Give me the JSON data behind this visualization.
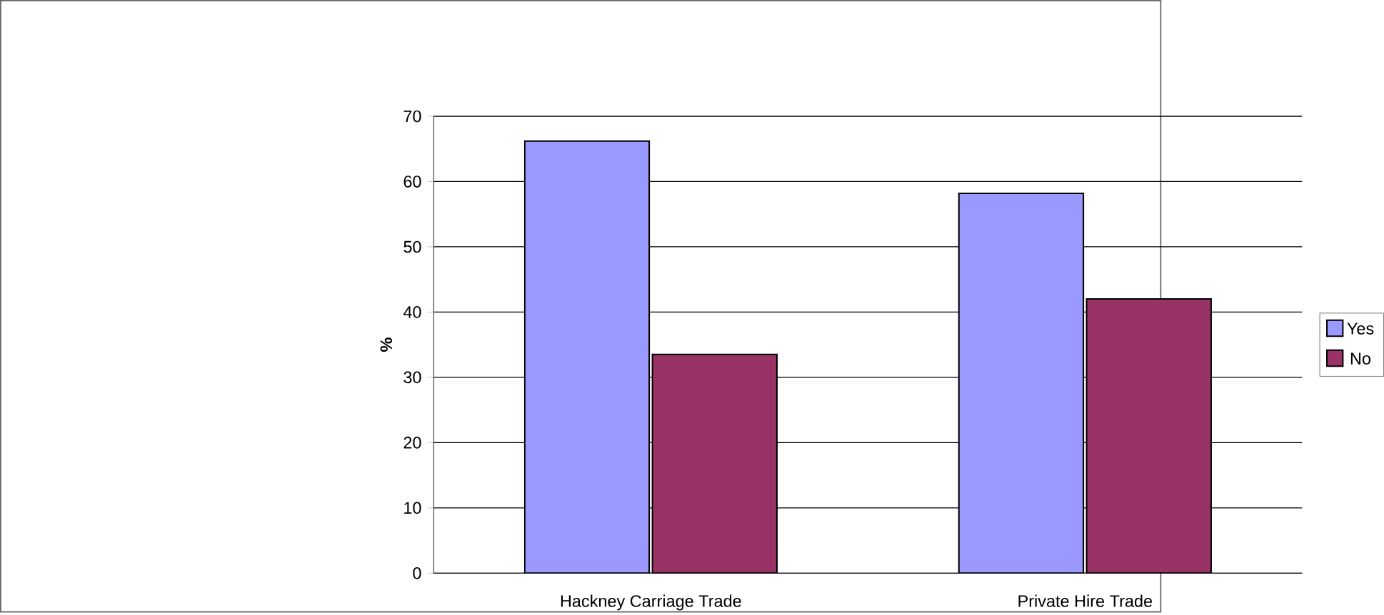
{
  "chart_data": {
    "type": "bar",
    "ylabel": "%",
    "categories": [
      "Hackney Carriage Trade",
      "Private Hire Trade"
    ],
    "series": [
      {
        "name": "Yes",
        "color": "#9999ff",
        "values": [
          66.2,
          58.2
        ]
      },
      {
        "name": "No",
        "color": "#993366",
        "values": [
          33.5,
          42.0
        ]
      }
    ],
    "ylim": [
      0,
      70
    ],
    "yticks": [
      0,
      10,
      20,
      30,
      40,
      50,
      60,
      70
    ],
    "grid": "y",
    "legend": "right"
  }
}
